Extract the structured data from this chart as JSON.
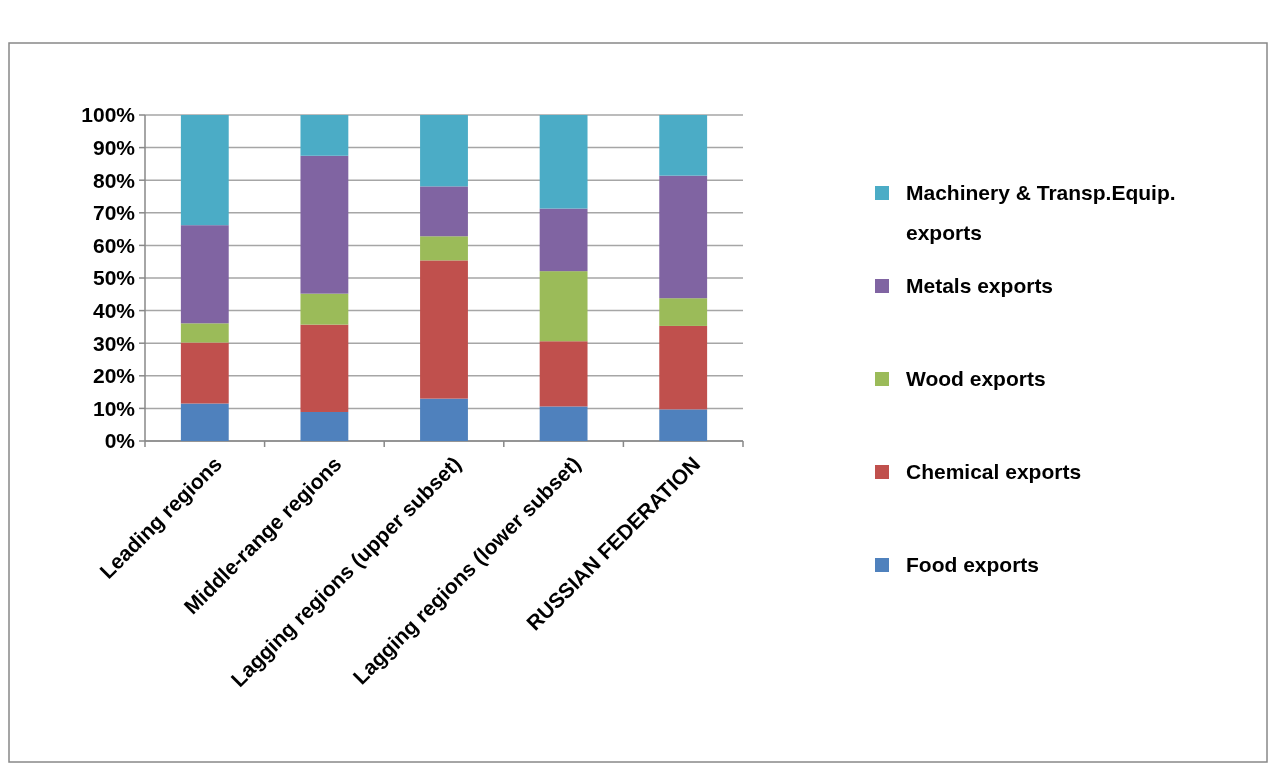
{
  "chart_data": {
    "type": "bar",
    "stacked": true,
    "categories": [
      "Leading regions",
      "Middle-range regions",
      "Lagging regions (upper subset)",
      "Lagging regions (lower subset)",
      "RUSSIAN FEDERATION"
    ],
    "series": [
      {
        "name": "Food exports",
        "color": "#4f81bd",
        "values": [
          11.5,
          8.9,
          13.0,
          10.6,
          9.7
        ]
      },
      {
        "name": "Chemical exports",
        "color": "#c0504d",
        "values": [
          18.7,
          26.8,
          42.4,
          20.0,
          25.6
        ]
      },
      {
        "name": "Wood exports",
        "color": "#9bbb59",
        "values": [
          5.9,
          9.5,
          7.4,
          21.5,
          8.5
        ]
      },
      {
        "name": "Metals exports",
        "color": "#8064a2",
        "values": [
          30.1,
          42.3,
          15.3,
          19.2,
          37.6
        ]
      },
      {
        "name": "Machinery & Transp.Equip. exports",
        "color": "#4bacc6",
        "values": [
          33.8,
          12.5,
          21.9,
          28.7,
          18.6
        ]
      }
    ],
    "ylim": [
      0,
      100
    ],
    "yticks": [
      {
        "value": 0,
        "label": "0%"
      },
      {
        "value": 10,
        "label": "10%"
      },
      {
        "value": 20,
        "label": "20%"
      },
      {
        "value": 30,
        "label": "30%"
      },
      {
        "value": 40,
        "label": "40%"
      },
      {
        "value": 50,
        "label": "50%"
      },
      {
        "value": 60,
        "label": "60%"
      },
      {
        "value": 70,
        "label": "70%"
      },
      {
        "value": 80,
        "label": "80%"
      },
      {
        "value": 90,
        "label": "90%"
      },
      {
        "value": 100,
        "label": "100%"
      }
    ],
    "grid": "y",
    "legend": "right"
  }
}
